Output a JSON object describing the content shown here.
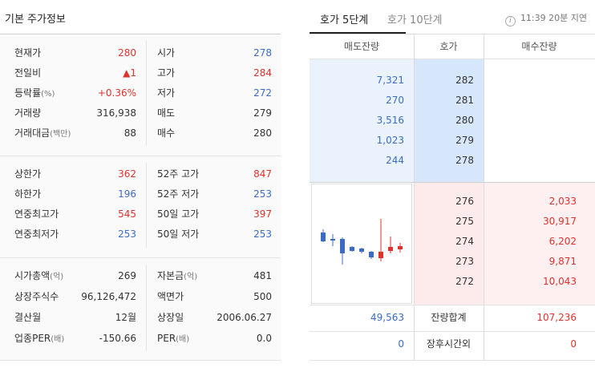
{
  "left": {
    "title": "기본 주가정보",
    "section1": [
      {
        "l1": "현재가",
        "l1s": "",
        "v1": "280",
        "c1": "red",
        "l2": "시가",
        "l2s": "",
        "v2": "278",
        "c2": "blue"
      },
      {
        "l1": "전일비",
        "l1s": "",
        "v1": "▲1",
        "c1": "red",
        "l2": "고가",
        "l2s": "",
        "v2": "284",
        "c2": "red"
      },
      {
        "l1": "등락률",
        "l1s": "(%)",
        "v1": "+0.36%",
        "c1": "red",
        "l2": "저가",
        "l2s": "",
        "v2": "272",
        "c2": "blue"
      },
      {
        "l1": "거래량",
        "l1s": "",
        "v1": "316,938",
        "c1": "dark",
        "l2": "매도",
        "l2s": "",
        "v2": "279",
        "c2": "dark"
      },
      {
        "l1": "거래대금",
        "l1s": "(백만)",
        "v1": "88",
        "c1": "dark",
        "l2": "매수",
        "l2s": "",
        "v2": "280",
        "c2": "dark"
      }
    ],
    "section2": [
      {
        "l1": "상한가",
        "l1s": "",
        "v1": "362",
        "c1": "red",
        "l2": "52주 고가",
        "l2s": "",
        "v2": "847",
        "c2": "red"
      },
      {
        "l1": "하한가",
        "l1s": "",
        "v1": "196",
        "c1": "blue",
        "l2": "52주 저가",
        "l2s": "",
        "v2": "253",
        "c2": "blue"
      },
      {
        "l1": "연중최고가",
        "l1s": "",
        "v1": "545",
        "c1": "red",
        "l2": "50일 고가",
        "l2s": "",
        "v2": "397",
        "c2": "red"
      },
      {
        "l1": "연중최저가",
        "l1s": "",
        "v1": "253",
        "c1": "blue",
        "l2": "50일 저가",
        "l2s": "",
        "v2": "253",
        "c2": "blue"
      }
    ],
    "section3": [
      {
        "l1": "시가총액",
        "l1s": "(억)",
        "v1": "269",
        "c1": "dark",
        "l2": "자본금",
        "l2s": "(억)",
        "v2": "481",
        "c2": "dark"
      },
      {
        "l1": "상장주식수",
        "l1s": "",
        "v1": "96,126,472",
        "c1": "dark",
        "l2": "액면가",
        "l2s": "",
        "v2": "500",
        "c2": "dark"
      },
      {
        "l1": "결산월",
        "l1s": "",
        "v1": "12월",
        "c1": "dark",
        "l2": "상장일",
        "l2s": "",
        "v2": "2006.06.27",
        "c2": "dark"
      },
      {
        "l1": "업종PER",
        "l1s": "(배)",
        "v1": "-150.66",
        "c1": "dark",
        "l2": "PER",
        "l2s": "(배)",
        "v2": "0.0",
        "c2": "dark"
      }
    ]
  },
  "right": {
    "tabs": [
      {
        "label": "호가 5단계"
      },
      {
        "label": "호가 10단계"
      }
    ],
    "delay": "11:39 20분 지연",
    "headers": {
      "ask_qty": "매도잔량",
      "price": "호가",
      "bid_qty": "매수잔량"
    },
    "asks": [
      {
        "qty": "7,321",
        "price": "282"
      },
      {
        "qty": "270",
        "price": "281"
      },
      {
        "qty": "3,516",
        "price": "280"
      },
      {
        "qty": "1,023",
        "price": "279"
      },
      {
        "qty": "244",
        "price": "278"
      }
    ],
    "bids": [
      {
        "price": "276",
        "qty": "2,033"
      },
      {
        "price": "275",
        "qty": "30,917"
      },
      {
        "price": "274",
        "qty": "6,202"
      },
      {
        "price": "273",
        "qty": "9,871"
      },
      {
        "price": "272",
        "qty": "10,043"
      }
    ],
    "total": {
      "ask": "49,563",
      "label": "잔량합계",
      "bid": "107,236"
    },
    "after_hours": {
      "ask": "0",
      "label": "장후시간외",
      "bid": "0"
    }
  },
  "colors": {
    "up": "#e0322d",
    "down": "#3b6cc4",
    "ask_bg": "#eaf3fd",
    "bid_bg": "#fef0f0"
  },
  "icons": {
    "info": "info-icon"
  }
}
